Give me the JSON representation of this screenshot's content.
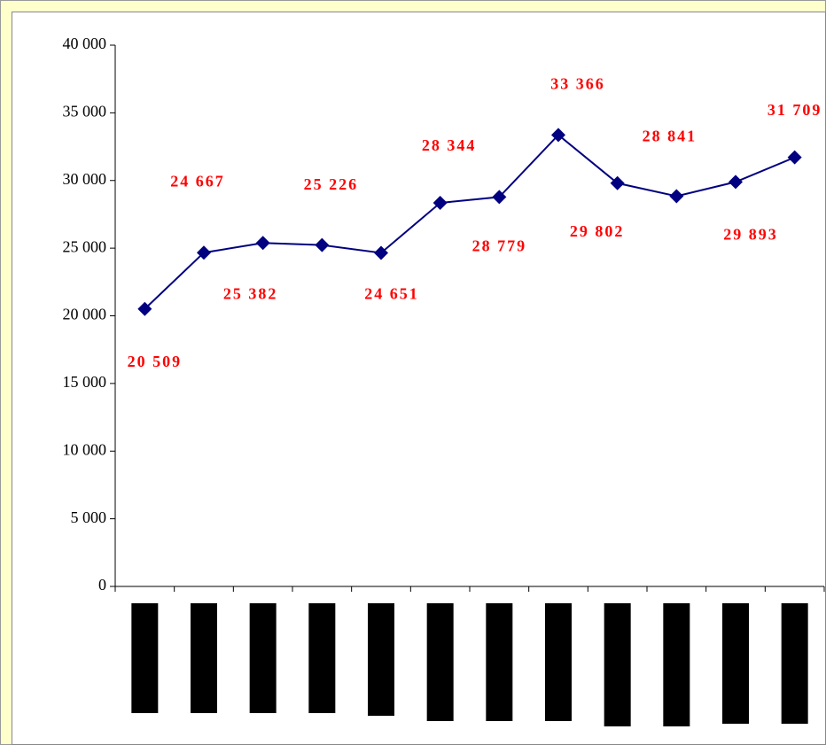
{
  "chart_data": {
    "type": "line",
    "categories": [
      null,
      null,
      null,
      null,
      null,
      null,
      null,
      null,
      null,
      null,
      null,
      null
    ],
    "series": [
      {
        "color": "#000080",
        "values": [
          20509,
          24667,
          25382,
          25226,
          24651,
          28344,
          28779,
          33366,
          29802,
          28841,
          29893,
          31709
        ],
        "value_labels": [
          "20 509",
          "24 667",
          "25 382",
          "25 226",
          "24 651",
          "28 344",
          "28 779",
          "33 366",
          "29 802",
          "28 841",
          "29 893",
          "31 709"
        ]
      }
    ],
    "ylim": [
      0,
      40000
    ],
    "yticks": [
      0,
      {
        "value": 5000,
        "label": "5 000"
      },
      {
        "value": 10000,
        "label": "10 000"
      },
      {
        "value": 15000,
        "label": "15 000"
      },
      {
        "value": 20000,
        "label": "20 000"
      },
      {
        "value": 25000,
        "label": "25 000"
      },
      {
        "value": 30000,
        "label": "30 000"
      },
      {
        "value": 35000,
        "label": "35 000"
      },
      {
        "value": 40000,
        "label": "40 000"
      }
    ],
    "label_color": "#ff0000"
  }
}
